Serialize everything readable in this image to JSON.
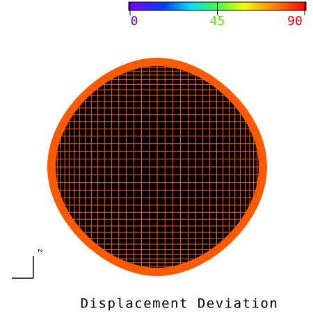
{
  "colorbar": {
    "lim": [
      0,
      90
    ],
    "ticks": [
      0,
      45,
      90
    ]
  },
  "title": "Displacement Deviation",
  "axis_label": "z"
}
